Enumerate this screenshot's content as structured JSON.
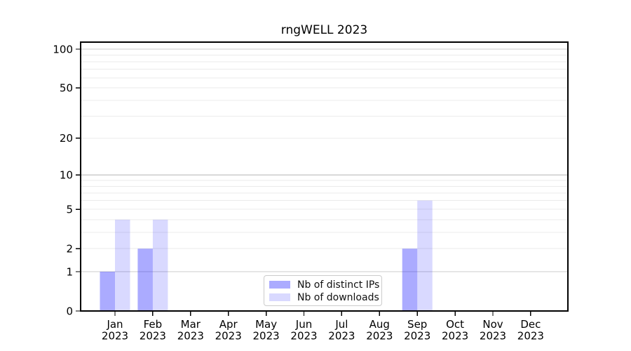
{
  "chart_data": {
    "type": "bar",
    "title": "rngWELL 2023",
    "x_categories": [
      {
        "month": "Jan",
        "year": "2023"
      },
      {
        "month": "Feb",
        "year": "2023"
      },
      {
        "month": "Mar",
        "year": "2023"
      },
      {
        "month": "Apr",
        "year": "2023"
      },
      {
        "month": "May",
        "year": "2023"
      },
      {
        "month": "Jun",
        "year": "2023"
      },
      {
        "month": "Jul",
        "year": "2023"
      },
      {
        "month": "Aug",
        "year": "2023"
      },
      {
        "month": "Sep",
        "year": "2023"
      },
      {
        "month": "Oct",
        "year": "2023"
      },
      {
        "month": "Nov",
        "year": "2023"
      },
      {
        "month": "Dec",
        "year": "2023"
      }
    ],
    "series": [
      {
        "name": "Nb of distinct IPs",
        "color": "rgba(0,0,255,0.33)",
        "values": [
          1,
          2,
          0,
          0,
          0,
          0,
          0,
          0,
          2,
          0,
          0,
          0
        ]
      },
      {
        "name": "Nb of downloads",
        "color": "rgba(0,0,255,0.15)",
        "values": [
          4,
          4,
          0,
          0,
          0,
          0,
          0,
          0,
          6,
          0,
          0,
          0
        ]
      }
    ],
    "y_axis": {
      "scale": "log10(1+y)",
      "ticks": [
        {
          "value": 100,
          "label": "100"
        },
        {
          "value": 50,
          "label": "50"
        },
        {
          "value": 20,
          "label": "20"
        },
        {
          "value": 10,
          "label": "10"
        },
        {
          "value": 5,
          "label": "5"
        },
        {
          "value": 2,
          "label": "2"
        },
        {
          "value": 1,
          "label": "1"
        },
        {
          "value": 0,
          "label": "0"
        }
      ],
      "major_gridlines": [
        1,
        10,
        100
      ],
      "minor_gridlines": [
        2,
        3,
        4,
        5,
        6,
        7,
        8,
        9,
        20,
        30,
        40,
        50,
        60,
        70,
        80,
        90
      ],
      "range_top_value": 113
    },
    "grid": true,
    "legend_position": "inside-bottom-center",
    "colors": {
      "bar_distinct_ips": "rgba(0,0,255,0.33)",
      "bar_downloads": "rgba(0,0,255,0.15)",
      "major_grid": "#cccccc",
      "minor_grid": "#ebebeb",
      "axis": "#000000",
      "text": "#000000"
    }
  }
}
